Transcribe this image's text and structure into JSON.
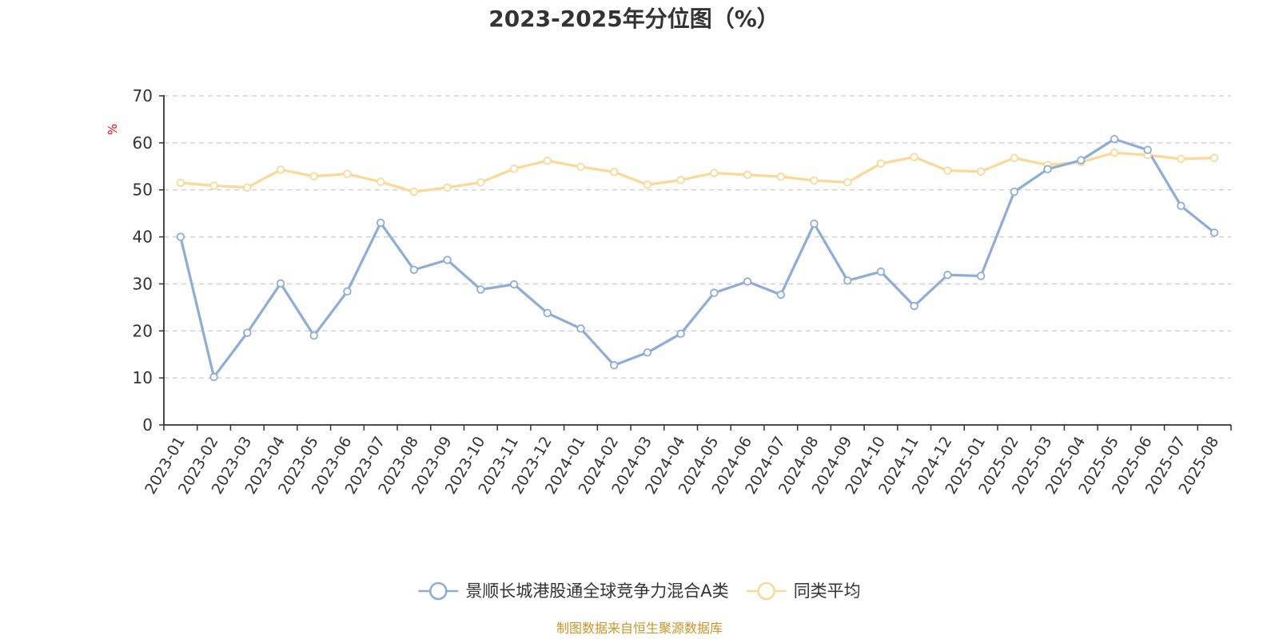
{
  "colors": {
    "series_fund": "#8eacd8",
    "series_avg": "#fad896",
    "axis": "#333333",
    "grid": "#cccccc",
    "unit": "#ff0000",
    "source": "#c8962a"
  },
  "footer": {
    "source_text": "制图数据来自恒生聚源数据库"
  },
  "chart_data": {
    "type": "line",
    "title": "2023-2025年分位图（%）",
    "ylabel": "%",
    "ylim": [
      0,
      70
    ],
    "yticks": [
      0,
      10,
      20,
      30,
      40,
      50,
      60,
      70
    ],
    "grid": true,
    "legend_position": "bottom-center",
    "categories": [
      "2023-01",
      "2023-02",
      "2023-03",
      "2023-04",
      "2023-05",
      "2023-06",
      "2023-07",
      "2023-08",
      "2023-09",
      "2023-10",
      "2023-11",
      "2023-12",
      "2024-01",
      "2024-02",
      "2024-03",
      "2024-04",
      "2024-05",
      "2024-06",
      "2024-07",
      "2024-08",
      "2024-09",
      "2024-10",
      "2024-11",
      "2024-12",
      "2025-01",
      "2025-02",
      "2025-03",
      "2025-04",
      "2025-05",
      "2025-06",
      "2025-07",
      "2025-08"
    ],
    "series": [
      {
        "name": "景顺长城港股通全球竞争力混合A类",
        "color": "#8eacd8",
        "values": [
          40.0,
          10.2,
          19.6,
          30.1,
          19.0,
          28.4,
          43.0,
          33.0,
          35.1,
          28.8,
          29.9,
          23.8,
          20.5,
          12.7,
          15.4,
          19.4,
          28.1,
          30.5,
          27.7,
          42.8,
          30.7,
          32.6,
          25.3,
          31.9,
          31.7,
          49.6,
          54.4,
          56.3,
          60.8,
          58.5,
          46.6,
          40.9
        ]
      },
      {
        "name": "同类平均",
        "color": "#fad896",
        "values": [
          51.5,
          50.9,
          50.5,
          54.3,
          52.9,
          53.4,
          51.7,
          49.6,
          50.5,
          51.6,
          54.5,
          56.2,
          54.9,
          53.8,
          51.1,
          52.1,
          53.6,
          53.2,
          52.8,
          52.0,
          51.6,
          55.6,
          57.0,
          54.1,
          53.9,
          56.8,
          55.3,
          55.9,
          57.9,
          57.4,
          56.6,
          56.8
        ]
      }
    ]
  }
}
